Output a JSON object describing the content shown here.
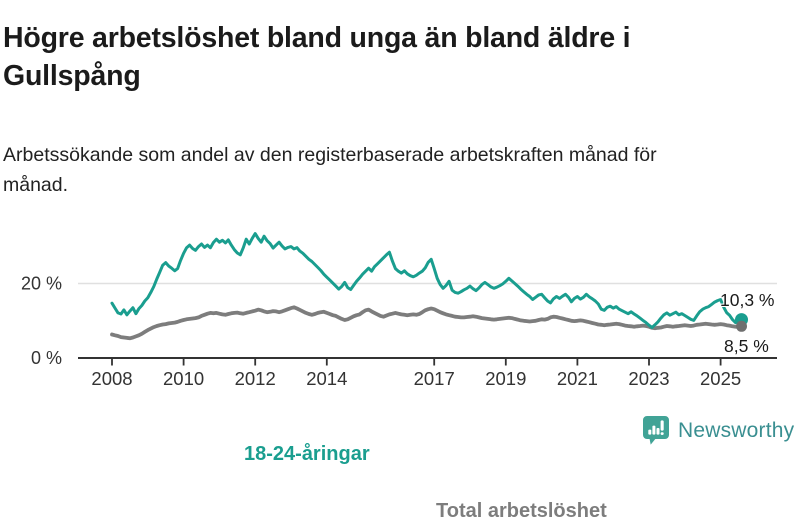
{
  "header": {
    "title": "Högre arbetslöshet bland unga än bland äldre i Gullspång",
    "subtitle": "Arbetssökande som andel av den registerbaserade arbetskraften månad för månad."
  },
  "chart_data": {
    "type": "line",
    "x_unit": "month",
    "x_start": "2008-01",
    "x_end": "2025-08",
    "x_ticks": [
      2008,
      2010,
      2012,
      2014,
      2017,
      2019,
      2021,
      2023,
      2025
    ],
    "y_ticks": [
      {
        "value": 0,
        "label": "0 %"
      },
      {
        "value": 20,
        "label": "20 %"
      }
    ],
    "ylim": [
      0,
      36
    ],
    "grid": "single light horizontal gridline at 20 %",
    "legend_position": "labels on lines",
    "series": [
      {
        "name": "18-24-åringar",
        "color": "#1a9e8f",
        "end_value": 10.3,
        "end_value_label": "10,3 %",
        "values": [
          14.7,
          13.4,
          12.1,
          11.8,
          12.9,
          11.6,
          12.6,
          13.5,
          11.9,
          13.2,
          14.1,
          15.3,
          16.2,
          17.6,
          19.2,
          21.2,
          23.0,
          24.9,
          25.6,
          24.7,
          24.1,
          23.4,
          24.0,
          26.2,
          28.1,
          29.6,
          30.3,
          29.4,
          28.9,
          29.9,
          30.6,
          29.7,
          30.3,
          29.6,
          31.0,
          31.9,
          31.1,
          31.6,
          30.9,
          31.7,
          30.3,
          29.1,
          28.2,
          27.7,
          29.6,
          31.9,
          30.6,
          32.1,
          33.4,
          32.1,
          31.1,
          32.7,
          31.5,
          30.7,
          29.5,
          30.3,
          31.1,
          30.1,
          29.3,
          29.7,
          29.9,
          29.3,
          29.6,
          28.7,
          28.1,
          27.3,
          26.5,
          25.9,
          25.1,
          24.3,
          23.5,
          22.5,
          21.7,
          20.9,
          20.1,
          19.3,
          18.5,
          19.2,
          20.3,
          18.9,
          18.4,
          19.5,
          20.6,
          21.5,
          22.5,
          23.3,
          24.1,
          23.3,
          24.5,
          25.3,
          26.1,
          26.9,
          27.7,
          28.4,
          26.0,
          24.0,
          23.3,
          22.8,
          23.4,
          22.6,
          22.1,
          21.8,
          22.2,
          22.8,
          23.3,
          24.2,
          25.7,
          26.5,
          24.0,
          21.4,
          19.7,
          18.7,
          19.5,
          20.6,
          18.2,
          17.6,
          17.4,
          17.8,
          18.3,
          18.7,
          19.3,
          18.6,
          18.1,
          18.8,
          19.7,
          20.3,
          19.7,
          19.1,
          18.7,
          19.0,
          19.4,
          19.9,
          20.6,
          21.4,
          20.7,
          20.0,
          19.3,
          18.5,
          17.8,
          17.1,
          16.5,
          15.7,
          16.3,
          16.9,
          17.1,
          16.2,
          15.3,
          14.8,
          15.9,
          16.5,
          16.0,
          16.6,
          17.1,
          16.3,
          15.1,
          16.0,
          16.5,
          15.8,
          16.3,
          17.1,
          16.4,
          15.9,
          15.3,
          14.5,
          13.1,
          12.8,
          13.6,
          13.9,
          13.4,
          13.8,
          13.1,
          12.7,
          12.3,
          11.9,
          12.4,
          11.8,
          11.3,
          10.7,
          10.1,
          9.5,
          8.8,
          8.2,
          8.9,
          9.7,
          10.7,
          11.6,
          12.1,
          11.5,
          11.9,
          12.3,
          11.6,
          11.9,
          11.4,
          10.9,
          10.4,
          10.1,
          11.3,
          12.4,
          13.1,
          13.5,
          13.8,
          14.4,
          15.0,
          15.4,
          15.7,
          13.7,
          12.2,
          11.5,
          10.3,
          9.5,
          9.9,
          10.3
        ]
      },
      {
        "name": "Total arbetslöshet",
        "color": "#7d7d7d",
        "end_value": 8.5,
        "end_value_label": "8,5 %",
        "values": [
          6.3,
          6.1,
          5.9,
          5.6,
          5.5,
          5.4,
          5.3,
          5.5,
          5.8,
          6.1,
          6.5,
          7.0,
          7.5,
          7.9,
          8.3,
          8.6,
          8.8,
          9.0,
          9.1,
          9.3,
          9.4,
          9.5,
          9.7,
          10.0,
          10.2,
          10.4,
          10.5,
          10.6,
          10.7,
          10.9,
          11.3,
          11.6,
          11.9,
          12.1,
          12.0,
          12.1,
          11.9,
          11.7,
          11.6,
          11.8,
          12.0,
          12.1,
          12.2,
          12.0,
          11.9,
          12.1,
          12.3,
          12.5,
          12.7,
          13.0,
          12.8,
          12.5,
          12.3,
          12.4,
          12.6,
          12.5,
          12.3,
          12.5,
          12.8,
          13.1,
          13.4,
          13.6,
          13.3,
          12.9,
          12.5,
          12.1,
          11.8,
          11.6,
          11.8,
          12.1,
          12.3,
          12.4,
          12.1,
          11.8,
          11.5,
          11.3,
          10.9,
          10.5,
          10.2,
          10.4,
          10.8,
          11.2,
          11.5,
          11.7,
          12.3,
          12.8,
          13.0,
          12.5,
          12.1,
          11.7,
          11.3,
          11.1,
          11.4,
          11.7,
          11.9,
          12.1,
          11.9,
          11.7,
          11.6,
          11.5,
          11.6,
          11.7,
          11.6,
          11.8,
          12.3,
          12.8,
          13.1,
          13.3,
          13.1,
          12.7,
          12.3,
          12.0,
          11.7,
          11.5,
          11.3,
          11.1,
          11.0,
          10.9,
          10.9,
          11.0,
          11.1,
          11.2,
          11.1,
          10.9,
          10.7,
          10.6,
          10.5,
          10.4,
          10.3,
          10.4,
          10.5,
          10.6,
          10.7,
          10.8,
          10.7,
          10.5,
          10.3,
          10.1,
          10.0,
          9.9,
          9.8,
          9.9,
          10.0,
          10.2,
          10.4,
          10.3,
          10.5,
          10.9,
          11.1,
          11.0,
          10.8,
          10.6,
          10.4,
          10.2,
          10.0,
          9.9,
          10.0,
          10.1,
          10.0,
          9.8,
          9.6,
          9.4,
          9.2,
          9.0,
          8.9,
          8.8,
          8.9,
          9.0,
          9.1,
          9.2,
          9.1,
          8.9,
          8.7,
          8.6,
          8.5,
          8.4,
          8.5,
          8.6,
          8.7,
          8.6,
          8.4,
          8.1,
          8.0,
          8.1,
          8.2,
          8.4,
          8.6,
          8.5,
          8.4,
          8.5,
          8.6,
          8.7,
          8.8,
          8.7,
          8.6,
          8.7,
          8.9,
          9.0,
          9.1,
          9.2,
          9.1,
          9.0,
          8.9,
          9.0,
          9.1,
          9.0,
          8.8,
          8.7,
          8.5,
          8.4,
          8.4,
          8.5
        ]
      }
    ]
  },
  "branding": {
    "logo_text": "Newsworthy",
    "logo_icon": "newsworthy-chart-bubble-icon",
    "icon_color": "#41a396",
    "text_color": "#3a8f91"
  },
  "colors": {
    "accent_teal": "#1a9e8f",
    "line_gray": "#7d7d7d",
    "axis": "#333333",
    "gridline": "#e0e0e0",
    "title_text": "#1b1b1b"
  }
}
